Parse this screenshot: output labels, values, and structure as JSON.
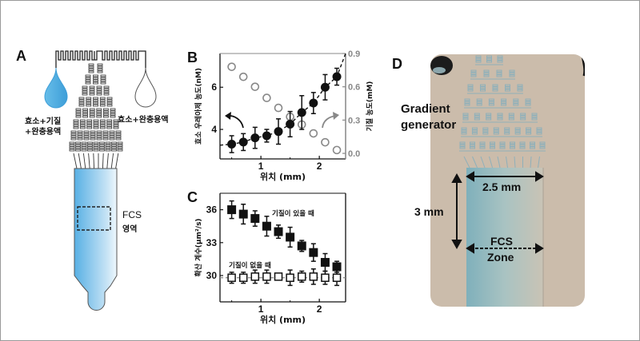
{
  "panels": {
    "a": {
      "label": "A",
      "left_drop_text_1": "효소+기질",
      "left_drop_text_2": "+완충용액",
      "right_drop_text": "효소+완충용액",
      "fcs_text_1": "FCS",
      "fcs_text_2": "영역",
      "colors": {
        "blue": "#5ab4e6",
        "light": "#e8f4fb"
      }
    },
    "b": {
      "label": "B"
    },
    "c": {
      "label": "C"
    },
    "d": {
      "label": "D",
      "gradient_label_1": "Gradient",
      "gradient_label_2": "generator",
      "width_label": "2.5 mm",
      "height_label": "3 mm",
      "zone_label_1": "FCS",
      "zone_label_2": "Zone",
      "colors": {
        "chip": "#c9baa8",
        "channel": "#8fb3bd"
      }
    }
  },
  "chart_data": [
    {
      "type": "scatter",
      "panel": "B",
      "xlabel": "위치 (mm)",
      "ylabel": "효소 우레아제 농도(nM)",
      "y2label": "기질 농도(mM)",
      "xlim": [
        0.3,
        2.45
      ],
      "ylim": [
        2.6,
        7.6
      ],
      "y2lim": [
        -0.05,
        0.9
      ],
      "x_ticks": [
        "1",
        "2"
      ],
      "y_ticks": [
        "4",
        "6"
      ],
      "y2_ticks": [
        "0.0",
        "0.3",
        "0.6",
        "0.9"
      ],
      "series": [
        {
          "name": "효소 우레아제 농도",
          "axis": "left",
          "marker": "filled-circle",
          "x": [
            0.5,
            0.7,
            0.9,
            1.1,
            1.3,
            1.5,
            1.7,
            1.9,
            2.1,
            2.3
          ],
          "values": [
            3.3,
            3.4,
            3.6,
            3.7,
            3.9,
            4.25,
            4.8,
            5.25,
            6.0,
            6.5
          ],
          "errors": [
            0.4,
            0.4,
            0.5,
            0.3,
            0.6,
            0.6,
            0.8,
            0.5,
            0.6,
            0.4
          ]
        },
        {
          "name": "기질 농도",
          "axis": "right",
          "marker": "open-circle",
          "x": [
            0.5,
            0.7,
            0.9,
            1.1,
            1.3,
            1.5,
            1.7,
            1.9,
            2.1,
            2.3
          ],
          "values": [
            0.78,
            0.69,
            0.6,
            0.5,
            0.41,
            0.33,
            0.26,
            0.18,
            0.1,
            0.03
          ]
        }
      ]
    },
    {
      "type": "scatter",
      "panel": "C",
      "xlabel": "위치 (mm)",
      "ylabel": "확산 계수(μm²/s)",
      "xlim": [
        0.3,
        2.45
      ],
      "ylim": [
        27.6,
        37.5
      ],
      "x_ticks": [
        "1",
        "2"
      ],
      "y_ticks": [
        "30",
        "33",
        "36"
      ],
      "reference_line": 29.8,
      "series": [
        {
          "name": "기질이 있을 때",
          "marker": "filled-square",
          "x": [
            0.5,
            0.7,
            0.9,
            1.1,
            1.3,
            1.5,
            1.7,
            1.9,
            2.1,
            2.3
          ],
          "values": [
            36.0,
            35.6,
            35.2,
            34.5,
            34.0,
            33.5,
            32.7,
            32.1,
            31.2,
            30.8
          ],
          "errors": [
            0.8,
            0.9,
            0.7,
            0.9,
            0.6,
            0.9,
            0.5,
            0.8,
            0.8,
            0.5
          ]
        },
        {
          "name": "기질이 없을 때",
          "marker": "open-square",
          "x": [
            0.5,
            0.7,
            0.9,
            1.1,
            1.3,
            1.5,
            1.7,
            1.9,
            2.1,
            2.3
          ],
          "values": [
            29.8,
            29.8,
            29.9,
            29.9,
            29.9,
            29.8,
            29.9,
            29.9,
            29.8,
            29.8
          ],
          "errors": [
            0.5,
            0.5,
            0.6,
            0.6,
            0.3,
            0.7,
            0.5,
            0.7,
            0.6,
            0.7
          ]
        }
      ]
    }
  ]
}
